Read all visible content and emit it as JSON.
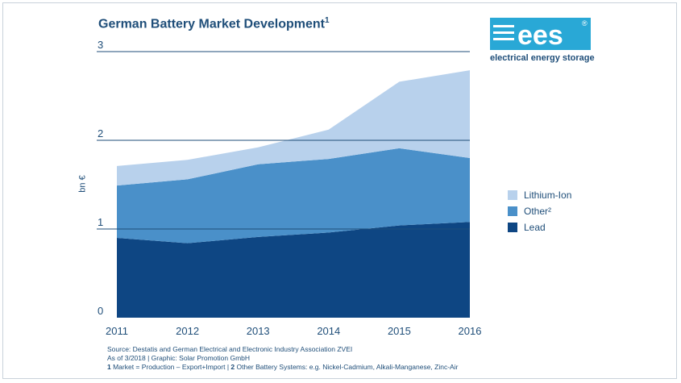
{
  "title": "German Battery Market Development",
  "title_sup": "1",
  "logo": {
    "text": "ees",
    "registered": "®",
    "tagline": "electrical energy storage",
    "color": "#29a8d6"
  },
  "colors": {
    "lithium": "#b8d1ec",
    "other": "#4a90c9",
    "lead": "#0e4683",
    "axis_text": "#1f4e79",
    "grid": "#1f4e79"
  },
  "chart_data": {
    "type": "area",
    "stacked": true,
    "title": "German Battery Market Development",
    "ylabel": "bn €",
    "x": [
      "2011",
      "2012",
      "2013",
      "2014",
      "2015",
      "2016"
    ],
    "ylim": [
      0,
      3
    ],
    "yticks": [
      "0",
      "1",
      "2",
      "3"
    ],
    "series": [
      {
        "name": "Lead",
        "values": [
          0.9,
          0.84,
          0.91,
          0.96,
          1.04,
          1.08
        ]
      },
      {
        "name": "Other²",
        "values": [
          0.59,
          0.72,
          0.82,
          0.83,
          0.87,
          0.72
        ]
      },
      {
        "name": "Lithium-Ion",
        "values": [
          0.22,
          0.22,
          0.19,
          0.33,
          0.75,
          0.99
        ]
      }
    ],
    "legend_position": "right"
  },
  "legend": [
    {
      "label": "Lithium-Ion",
      "color": "#b8d1ec"
    },
    {
      "label": "Other²",
      "color": "#4a90c9"
    },
    {
      "label": "Lead",
      "color": "#0e4683"
    }
  ],
  "source": {
    "line1": "Source: Destatis and German Electrical and Electronic Industry Association ZVEI",
    "line2": "As of 3/2018 | Graphic: Solar Promotion GmbH",
    "line3_b1": "1",
    "line3_t1": " Market = Production – Export+Import | ",
    "line3_b2": "2",
    "line3_t2": " Other Battery Systems: e.g. Nickel-Cadmium, Alkali-Manganese, Zinc-Air"
  }
}
